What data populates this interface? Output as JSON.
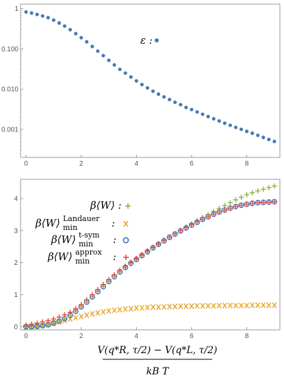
{
  "chart_data": [
    {
      "type": "scatter",
      "x_scale": "linear",
      "y_scale": "log",
      "xlim": [
        -0.2,
        9.2
      ],
      "ylim": [
        0.0002,
        1.3
      ],
      "x_ticks": [
        "0",
        "2",
        "4",
        "6",
        "8"
      ],
      "y_ticks": [
        "0.001",
        "0.010",
        "0.100",
        "1"
      ],
      "legend": {
        "placement": "upper-middle"
      },
      "series": [
        {
          "name": "ε :",
          "marker": "circle",
          "color": "#4a79b5",
          "x": [
            0,
            0.2,
            0.4,
            0.6,
            0.8,
            1.0,
            1.2,
            1.4,
            1.6,
            1.8,
            2.0,
            2.2,
            2.4,
            2.6,
            2.8,
            3.0,
            3.2,
            3.4,
            3.6,
            3.8,
            4.0,
            4.2,
            4.4,
            4.6,
            4.8,
            5.0,
            5.2,
            5.4,
            5.6,
            5.8,
            6.0,
            6.2,
            6.4,
            6.6,
            6.8,
            7.0,
            7.2,
            7.4,
            7.6,
            7.8,
            8.0,
            8.2,
            8.4,
            8.6,
            8.8,
            9.0
          ],
          "y": [
            0.83,
            0.78,
            0.72,
            0.66,
            0.6,
            0.52,
            0.44,
            0.37,
            0.3,
            0.24,
            0.19,
            0.15,
            0.115,
            0.088,
            0.068,
            0.052,
            0.04,
            0.031,
            0.025,
            0.02,
            0.016,
            0.013,
            0.0107,
            0.0089,
            0.0075,
            0.0064,
            0.0055,
            0.0047,
            0.0041,
            0.0035,
            0.0031,
            0.0027,
            0.00237,
            0.00208,
            0.00183,
            0.00161,
            0.00142,
            0.00126,
            0.00112,
            0.001,
            0.00089,
            0.0008,
            0.00071,
            0.00063,
            0.00056,
            0.0005
          ]
        }
      ]
    },
    {
      "type": "scatter",
      "x_scale": "linear",
      "y_scale": "linear",
      "xlim": [
        -0.2,
        9.2
      ],
      "ylim": [
        -0.1,
        4.6
      ],
      "x_ticks": [
        "0",
        "2",
        "4",
        "6",
        "8"
      ],
      "y_ticks": [
        "0",
        "1",
        "2",
        "3",
        "4"
      ],
      "xlabel": "V(q*R, τ/2) − V(q*L, τ/2) / kB T",
      "legend": {
        "placement": "top-left"
      },
      "series": [
        {
          "name": "β⟨W⟩ :",
          "marker": "plus",
          "color": "#8db13c",
          "x": [
            0,
            0.2,
            0.4,
            0.6,
            0.8,
            1.0,
            1.2,
            1.4,
            1.6,
            1.8,
            2.0,
            2.2,
            2.4,
            2.6,
            2.8,
            3.0,
            3.2,
            3.4,
            3.6,
            3.8,
            4.0,
            4.2,
            4.4,
            4.6,
            4.8,
            5.0,
            5.2,
            5.4,
            5.6,
            5.8,
            6.0,
            6.2,
            6.4,
            6.6,
            6.8,
            7.0,
            7.2,
            7.4,
            7.6,
            7.8,
            8.0,
            8.2,
            8.4,
            8.6,
            8.8,
            9.0
          ],
          "y": [
            0.0,
            0.0,
            0.01,
            0.03,
            0.06,
            0.11,
            0.17,
            0.25,
            0.36,
            0.48,
            0.62,
            0.77,
            0.93,
            1.09,
            1.25,
            1.41,
            1.56,
            1.71,
            1.85,
            1.98,
            2.1,
            2.22,
            2.34,
            2.46,
            2.57,
            2.68,
            2.79,
            2.9,
            3.0,
            3.11,
            3.21,
            3.31,
            3.41,
            3.5,
            3.6,
            3.69,
            3.78,
            3.87,
            3.96,
            4.04,
            4.12,
            4.18,
            4.24,
            4.29,
            4.34,
            4.39
          ]
        },
        {
          "name": "β⟨W⟩minLandauer :",
          "marker": "x",
          "color": "#e8a323",
          "x": [
            0,
            0.2,
            0.4,
            0.6,
            0.8,
            1.0,
            1.2,
            1.4,
            1.6,
            1.8,
            2.0,
            2.2,
            2.4,
            2.6,
            2.8,
            3.0,
            3.2,
            3.4,
            3.6,
            3.8,
            4.0,
            4.2,
            4.4,
            4.6,
            4.8,
            5.0,
            5.2,
            5.4,
            5.6,
            5.8,
            6.0,
            6.2,
            6.4,
            6.6,
            6.8,
            7.0,
            7.2,
            7.4,
            7.6,
            7.8,
            8.0,
            8.2,
            8.4,
            8.6,
            8.8,
            9.0
          ],
          "y": [
            -0.02,
            -0.01,
            0.01,
            0.04,
            0.07,
            0.11,
            0.15,
            0.19,
            0.24,
            0.28,
            0.32,
            0.36,
            0.4,
            0.43,
            0.46,
            0.49,
            0.51,
            0.53,
            0.55,
            0.56,
            0.58,
            0.59,
            0.6,
            0.61,
            0.61,
            0.62,
            0.63,
            0.63,
            0.64,
            0.64,
            0.64,
            0.65,
            0.65,
            0.65,
            0.65,
            0.66,
            0.66,
            0.66,
            0.66,
            0.66,
            0.66,
            0.67,
            0.67,
            0.67,
            0.67,
            0.67
          ]
        },
        {
          "name": "β⟨W⟩mint-sym :",
          "marker": "open-circle",
          "color": "#3a6fbf",
          "x": [
            0,
            0.2,
            0.4,
            0.6,
            0.8,
            1.0,
            1.2,
            1.4,
            1.6,
            1.8,
            2.0,
            2.2,
            2.4,
            2.6,
            2.8,
            3.0,
            3.2,
            3.4,
            3.6,
            3.8,
            4.0,
            4.2,
            4.4,
            4.6,
            4.8,
            5.0,
            5.2,
            5.4,
            5.6,
            5.8,
            6.0,
            6.2,
            6.4,
            6.6,
            6.8,
            7.0,
            7.2,
            7.4,
            7.6,
            7.8,
            8.0,
            8.2,
            8.4,
            8.6,
            8.8,
            9.0
          ],
          "y": [
            0.0,
            0.0,
            0.01,
            0.03,
            0.06,
            0.11,
            0.17,
            0.25,
            0.36,
            0.48,
            0.62,
            0.77,
            0.93,
            1.09,
            1.25,
            1.41,
            1.56,
            1.71,
            1.85,
            1.98,
            2.1,
            2.22,
            2.34,
            2.46,
            2.57,
            2.68,
            2.79,
            2.89,
            2.99,
            3.08,
            3.17,
            3.26,
            3.35,
            3.43,
            3.51,
            3.58,
            3.64,
            3.7,
            3.75,
            3.79,
            3.82,
            3.85,
            3.87,
            3.88,
            3.89,
            3.9
          ]
        },
        {
          "name": "β⟨W⟩minapprox :",
          "marker": "plus",
          "color": "#e5483a",
          "x": [
            0,
            0.2,
            0.4,
            0.6,
            0.8,
            1.0,
            1.2,
            1.4,
            1.6,
            1.8,
            2.0,
            2.2,
            2.4,
            2.6,
            2.8,
            3.0,
            3.2,
            3.4,
            3.6,
            3.8,
            4.0,
            4.2,
            4.4,
            4.6,
            4.8,
            5.0,
            5.2,
            5.4,
            5.6,
            5.8,
            6.0,
            6.2,
            6.4,
            6.6,
            6.8,
            7.0,
            7.2,
            7.4,
            7.6,
            7.8,
            8.0,
            8.2,
            8.4,
            8.6,
            8.8,
            9.0
          ],
          "y": [
            0.05,
            0.08,
            0.11,
            0.15,
            0.19,
            0.24,
            0.3,
            0.37,
            0.45,
            0.56,
            0.69,
            0.84,
            1.0,
            1.16,
            1.32,
            1.47,
            1.62,
            1.76,
            1.89,
            2.01,
            2.13,
            2.25,
            2.37,
            2.48,
            2.59,
            2.7,
            2.8,
            2.9,
            3.0,
            3.09,
            3.18,
            3.27,
            3.35,
            3.43,
            3.51,
            3.58,
            3.64,
            3.7,
            3.75,
            3.79,
            3.82,
            3.85,
            3.87,
            3.88,
            3.89,
            3.9
          ]
        }
      ]
    }
  ]
}
